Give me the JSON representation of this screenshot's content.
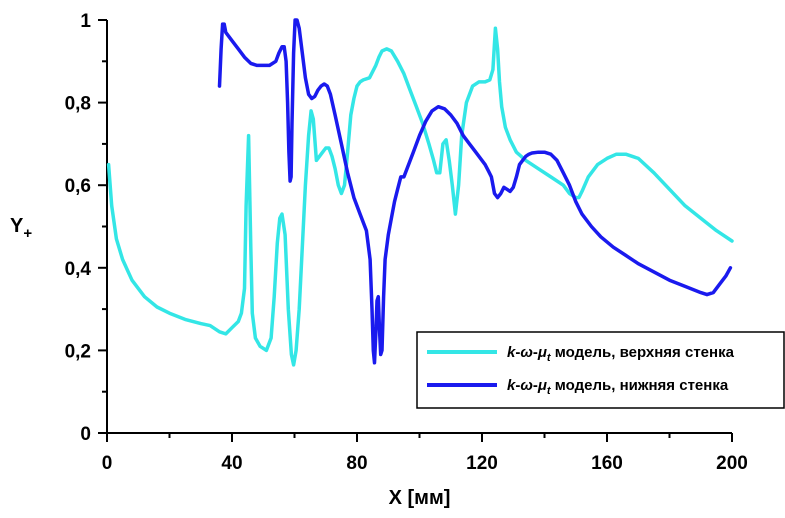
{
  "chart_data": {
    "type": "line",
    "xlabel": "X [мм]",
    "ylabel": "Y",
    "ylabel_subscript": "+",
    "xlim": [
      0,
      200
    ],
    "ylim": [
      0,
      1.0
    ],
    "x_ticks": [
      0,
      40,
      80,
      120,
      160,
      200
    ],
    "x_tick_labels": [
      "0",
      "40",
      "80",
      "120",
      "160",
      "200"
    ],
    "y_ticks": [
      0,
      0.2,
      0.4,
      0.6,
      0.8,
      1.0
    ],
    "y_tick_labels": [
      "0",
      "0,2",
      "0,4",
      "0,6",
      "0,8",
      "1"
    ],
    "legend_placement": "bottom-right",
    "grid": false,
    "series": [
      {
        "name": "k-ω-μt модель, верхняя стенка",
        "legend": {
          "k": "k",
          "omega": "ω",
          "mu": "μ",
          "t": "t",
          "suffix": " модель, верхняя стенка"
        },
        "color": "#33e6e6",
        "x": [
          0.5,
          1.5,
          3,
          5,
          8,
          12,
          16,
          20,
          25,
          30,
          33,
          36,
          38,
          40,
          42,
          43,
          44,
          44.5,
          45.3,
          46,
          46.5,
          47.5,
          49,
          51,
          52.5,
          53.5,
          54.5,
          55.3,
          56,
          57,
          58,
          59,
          59.7,
          60.5,
          61.5,
          62.5,
          63.5,
          64.5,
          65.3,
          66,
          67,
          68,
          69,
          70,
          71,
          72,
          73,
          74,
          75,
          76,
          77,
          78,
          79,
          80,
          81,
          82,
          84,
          86,
          87,
          88,
          89.5,
          91,
          93,
          95,
          97,
          99,
          101,
          103,
          104.5,
          105.5,
          106.5,
          107.5,
          108.5,
          109.5,
          110.5,
          111.5,
          112.5,
          113.5,
          115,
          117,
          119,
          121,
          122.5,
          123.5,
          124.3,
          125,
          125.6,
          126.3,
          127.5,
          129,
          131,
          134,
          138,
          142,
          146,
          148,
          149,
          150,
          151,
          152,
          154,
          157,
          160,
          163,
          166,
          170,
          175,
          180,
          185,
          190,
          195,
          200
        ],
        "y": [
          0.65,
          0.55,
          0.47,
          0.42,
          0.37,
          0.33,
          0.305,
          0.29,
          0.275,
          0.265,
          0.26,
          0.245,
          0.24,
          0.255,
          0.27,
          0.29,
          0.35,
          0.55,
          0.72,
          0.45,
          0.29,
          0.23,
          0.21,
          0.2,
          0.23,
          0.33,
          0.46,
          0.52,
          0.53,
          0.48,
          0.3,
          0.19,
          0.165,
          0.2,
          0.3,
          0.45,
          0.6,
          0.72,
          0.78,
          0.76,
          0.66,
          0.67,
          0.68,
          0.69,
          0.69,
          0.67,
          0.64,
          0.6,
          0.58,
          0.6,
          0.68,
          0.77,
          0.81,
          0.84,
          0.85,
          0.855,
          0.86,
          0.89,
          0.91,
          0.925,
          0.93,
          0.925,
          0.9,
          0.87,
          0.83,
          0.79,
          0.75,
          0.7,
          0.66,
          0.63,
          0.63,
          0.7,
          0.71,
          0.66,
          0.6,
          0.53,
          0.6,
          0.72,
          0.8,
          0.84,
          0.85,
          0.85,
          0.855,
          0.88,
          0.98,
          0.93,
          0.85,
          0.79,
          0.74,
          0.71,
          0.68,
          0.66,
          0.64,
          0.62,
          0.6,
          0.58,
          0.575,
          0.57,
          0.57,
          0.585,
          0.62,
          0.65,
          0.665,
          0.675,
          0.675,
          0.665,
          0.63,
          0.59,
          0.55,
          0.52,
          0.49,
          0.465
        ]
      },
      {
        "name": "k-ω-μt модель, нижняя стенка",
        "legend": {
          "k": "k",
          "omega": "ω",
          "mu": "μ",
          "t": "t",
          "suffix": " модель, нижняя стенка"
        },
        "color": "#1a1aee",
        "x": [
          36,
          36.5,
          37,
          37.5,
          38,
          40,
          42,
          44,
          46,
          48,
          50,
          52,
          54,
          55,
          56,
          56.7,
          57.3,
          57.8,
          58.2,
          58.6,
          58.9,
          59.2,
          59.7,
          60.2,
          60.8,
          61.5,
          62.5,
          63.5,
          64.5,
          65.5,
          66.5,
          67.5,
          68.5,
          69.5,
          70.5,
          71.5,
          73,
          75,
          77,
          79,
          81,
          83,
          84.2,
          84.8,
          85.2,
          85.6,
          86,
          86.4,
          86.8,
          87.2,
          87.6,
          88,
          88.5,
          89,
          90,
          91,
          92,
          93,
          94,
          95,
          96,
          98,
          100,
          102,
          104,
          106,
          108,
          110,
          112,
          114,
          116,
          118,
          120,
          121,
          122,
          123,
          124,
          125,
          126,
          127,
          128,
          129,
          130,
          131,
          132,
          133,
          134,
          135,
          136,
          138,
          140,
          142,
          144,
          146,
          148,
          150,
          152,
          155,
          158,
          162,
          166,
          170,
          175,
          180,
          185,
          190,
          192,
          194,
          196,
          198,
          199.5
        ],
        "y": [
          0.84,
          0.93,
          0.99,
          0.99,
          0.97,
          0.95,
          0.93,
          0.91,
          0.895,
          0.89,
          0.89,
          0.89,
          0.9,
          0.92,
          0.935,
          0.935,
          0.9,
          0.8,
          0.68,
          0.61,
          0.62,
          0.75,
          0.92,
          1.0,
          1.0,
          0.98,
          0.92,
          0.86,
          0.82,
          0.81,
          0.815,
          0.83,
          0.84,
          0.845,
          0.84,
          0.82,
          0.77,
          0.7,
          0.63,
          0.57,
          0.53,
          0.49,
          0.42,
          0.3,
          0.2,
          0.17,
          0.24,
          0.32,
          0.33,
          0.25,
          0.19,
          0.2,
          0.33,
          0.42,
          0.48,
          0.52,
          0.56,
          0.59,
          0.62,
          0.62,
          0.64,
          0.68,
          0.72,
          0.755,
          0.78,
          0.79,
          0.785,
          0.77,
          0.75,
          0.72,
          0.7,
          0.68,
          0.66,
          0.65,
          0.635,
          0.62,
          0.58,
          0.57,
          0.58,
          0.595,
          0.59,
          0.585,
          0.595,
          0.62,
          0.65,
          0.66,
          0.67,
          0.675,
          0.678,
          0.68,
          0.68,
          0.675,
          0.66,
          0.63,
          0.6,
          0.56,
          0.53,
          0.5,
          0.475,
          0.45,
          0.43,
          0.41,
          0.39,
          0.37,
          0.355,
          0.34,
          0.335,
          0.34,
          0.36,
          0.38,
          0.4
        ]
      }
    ]
  }
}
